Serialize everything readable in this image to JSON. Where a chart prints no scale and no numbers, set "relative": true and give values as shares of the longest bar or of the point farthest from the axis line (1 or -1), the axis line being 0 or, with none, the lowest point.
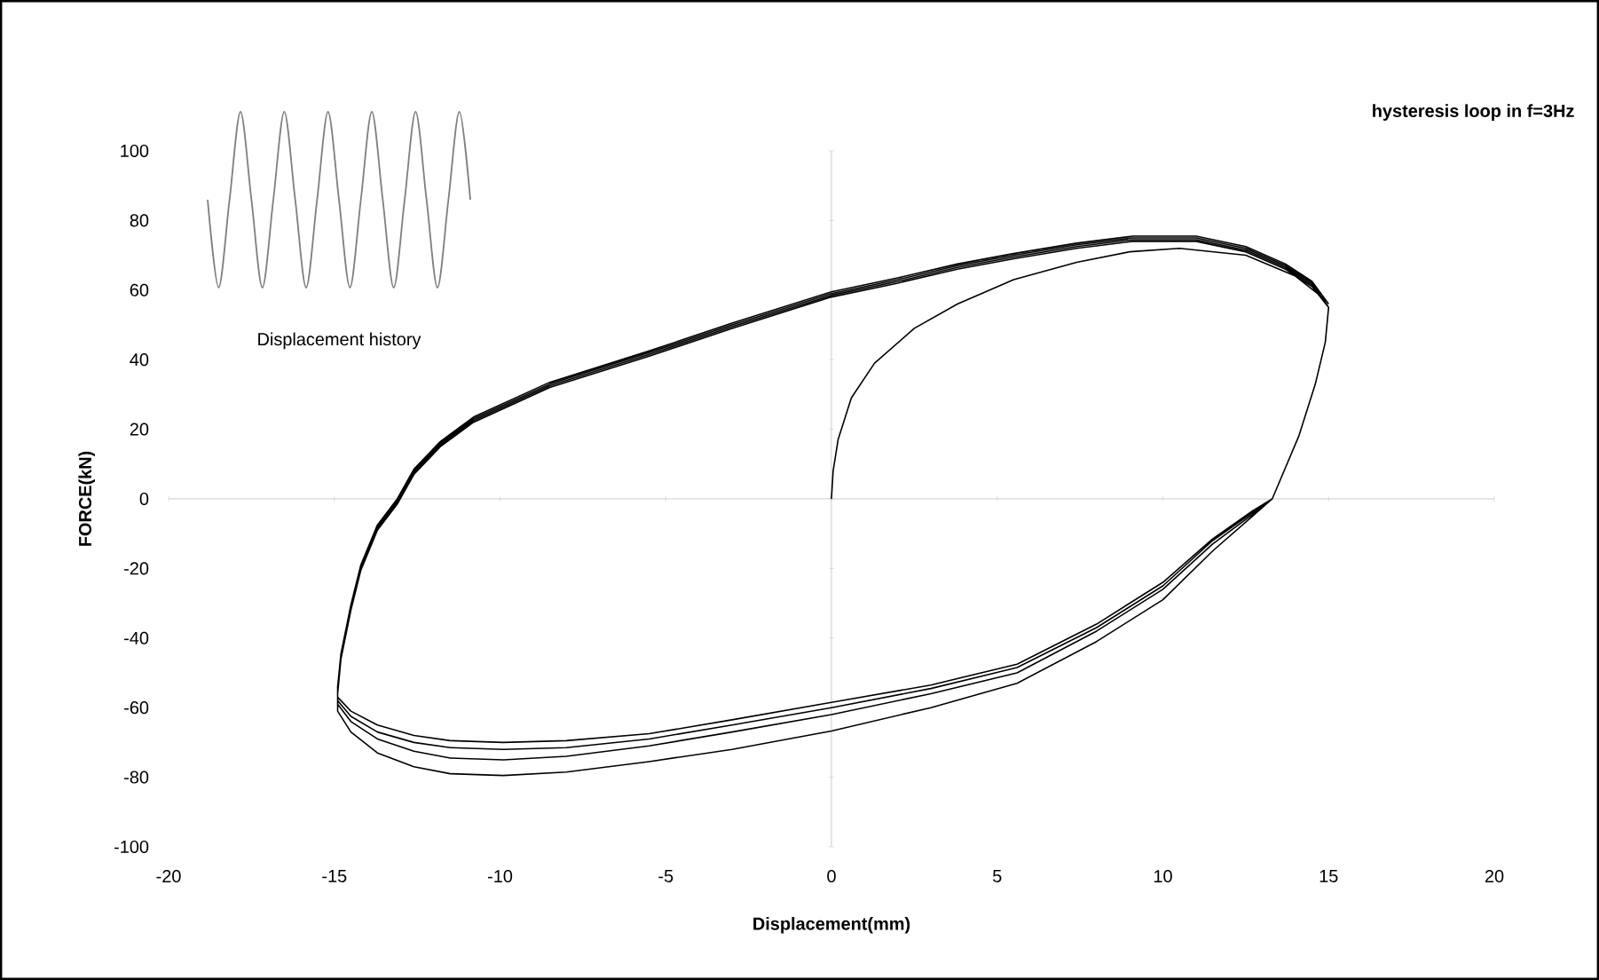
{
  "chart_data": [
    {
      "type": "line",
      "title": "hysteresis loop in f=3Hz",
      "xlabel": "Displacement(mm)",
      "ylabel": "FORCE(kN)",
      "xlim": [
        -20,
        20
      ],
      "ylim": [
        -100,
        100
      ],
      "xticks": [
        -20,
        -15,
        -10,
        -5,
        0,
        5,
        10,
        15,
        20
      ],
      "yticks": [
        -100,
        -80,
        -60,
        -40,
        -20,
        0,
        20,
        40,
        60,
        80,
        100
      ],
      "series": [
        {
          "color": "#000000",
          "x": [
            0,
            0.05,
            0.2,
            0.6,
            1.3,
            2.5,
            3.8,
            5.5,
            7.4,
            9,
            10.5,
            12.5,
            14,
            14.8,
            15,
            14.9,
            14.6,
            14.1,
            13.3,
            12.7,
            11.5,
            10,
            8,
            5.6,
            3,
            0,
            -3,
            -5.5,
            -8,
            -9.9,
            -11.5,
            -12.6,
            -13.7,
            -14.5,
            -14.9,
            -14.9,
            -14.8,
            -14.5,
            -14.2,
            -13.7,
            -13.1,
            -12.6,
            -11.8,
            -10.8,
            -8.5,
            -5.5,
            -3,
            0,
            2,
            3.8,
            5.5,
            7.4,
            9.1,
            11,
            12.5,
            13.7,
            14.5,
            15,
            14.9,
            14.6,
            14.1,
            13.3,
            12.7,
            11.5,
            10,
            8,
            5.6,
            3,
            0,
            -3,
            -5.5,
            -8,
            -9.9,
            -11.5,
            -12.6,
            -13.7,
            -14.5,
            -14.9,
            -14.9,
            -14.8,
            -14.5,
            -14.2,
            -13.7,
            -13.1,
            -12.6,
            -11.8,
            -10.8,
            -8.5,
            -5.5,
            -3,
            0,
            2,
            3.8,
            5.5,
            7.4,
            9.1,
            11,
            12.5,
            13.7,
            14.5,
            15,
            14.9,
            14.6,
            14.1,
            13.3,
            12.7,
            11.5,
            10,
            8,
            5.6,
            3,
            0,
            -3,
            -5.5,
            -8,
            -9.9,
            -11.5,
            -12.6,
            -13.7,
            -14.5,
            -14.9,
            -14.9,
            -14.8,
            -14.5,
            -14.2,
            -13.7,
            -13.1,
            -12.6,
            -11.8,
            -10.8,
            -8.5,
            -5.5,
            -3,
            0,
            2,
            3.8,
            5.5,
            7.4,
            9.1,
            11,
            12.5,
            13.7,
            14.5,
            15,
            14.9,
            14.6,
            14.1,
            13.3,
            12.7,
            11.5,
            10,
            8,
            5.6,
            3,
            0,
            -3,
            -5.5,
            -8,
            -9.9,
            -11.5,
            -12.6,
            -13.7,
            -14.5,
            -14.9,
            -14.9,
            -14.8,
            -14.5,
            -14.2,
            -13.7,
            -13.1,
            -12.6,
            -11.8,
            -10.8,
            -8.5,
            -5.5,
            -3,
            0,
            2,
            3.8,
            5.5,
            7.4,
            9.1,
            11,
            12.5,
            13.7,
            14.5,
            15
          ],
          "values": [
            0,
            8,
            17,
            29,
            39,
            49,
            56,
            63,
            68,
            71,
            72,
            70,
            64,
            58,
            55,
            45,
            33,
            18,
            0,
            -5,
            -15,
            -29,
            -41,
            -53,
            -60,
            -66.7,
            -72,
            -75.5,
            -78.5,
            -79.5,
            -79,
            -77,
            -73,
            -67,
            -61,
            -56,
            -46,
            -32,
            -20.5,
            -9,
            -1.5,
            7,
            15,
            22,
            32,
            41,
            49,
            58,
            62,
            66,
            69,
            72,
            74,
            74,
            71,
            66,
            61,
            55,
            45,
            33,
            18,
            0,
            -4.5,
            -13,
            -26,
            -38,
            -50,
            -56,
            -62,
            -67,
            -71,
            -74,
            -75,
            -74.5,
            -72.5,
            -69,
            -64,
            -59,
            -55,
            -45,
            -31.5,
            -20,
            -8.5,
            -1,
            7.5,
            15.5,
            22.5,
            32.5,
            41.5,
            49.5,
            58.5,
            62.5,
            66.5,
            69.5,
            72.5,
            74.5,
            74.5,
            71.5,
            66.5,
            61.5,
            55,
            45,
            33,
            18,
            0,
            -4,
            -12,
            -25,
            -37,
            -48.5,
            -54.5,
            -60,
            -65,
            -69,
            -71.5,
            -72,
            -71.5,
            -70,
            -67,
            -62.5,
            -58,
            -54.5,
            -45,
            -31,
            -19.5,
            -8,
            -0.5,
            8,
            16,
            23,
            33,
            42,
            50,
            59,
            63,
            67,
            70,
            73,
            75,
            75,
            72,
            67,
            62,
            55,
            45,
            33,
            18,
            0,
            -3.5,
            -11.5,
            -24,
            -36,
            -47.5,
            -53.5,
            -58.5,
            -63.5,
            -67.5,
            -69.5,
            -70,
            -69.5,
            -68,
            -65,
            -61,
            -57,
            -54,
            -44.5,
            -30.5,
            -19,
            -7.5,
            0,
            8.5,
            16.5,
            23.5,
            33.5,
            42.5,
            50.5,
            59.5,
            63.5,
            67.5,
            70.5,
            73.5,
            75.5,
            75.5,
            72.5,
            67.5,
            62.5,
            56
          ]
        }
      ]
    },
    {
      "type": "line",
      "relative": true,
      "annotations": [
        "Displacement history"
      ],
      "categories": [
        null,
        null,
        null,
        null,
        null,
        null,
        null,
        null,
        null,
        null,
        null,
        null,
        null,
        null,
        null,
        null,
        null,
        null,
        null,
        null,
        null,
        null,
        null,
        null,
        null
      ],
      "series": [
        {
          "color": "#7f7f7f",
          "values": [
            0.5,
            0,
            0.5,
            1,
            0.5,
            0,
            0.5,
            1,
            0.5,
            0,
            0.5,
            1,
            0.5,
            0,
            0.5,
            1,
            0.5,
            0,
            0.5,
            1,
            0.5,
            0,
            0.5,
            1,
            0.5
          ]
        }
      ]
    }
  ]
}
